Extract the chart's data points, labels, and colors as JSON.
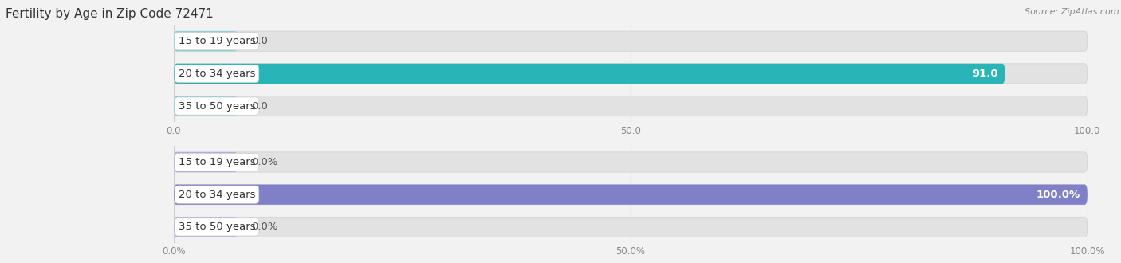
{
  "title": "Fertility by Age in Zip Code 72471",
  "source": "Source: ZipAtlas.com",
  "background_color": "#f2f2f2",
  "top_chart": {
    "categories": [
      "15 to 19 years",
      "20 to 34 years",
      "35 to 50 years"
    ],
    "values": [
      0.0,
      91.0,
      0.0
    ],
    "xlim": [
      0,
      100
    ],
    "xticks": [
      0.0,
      50.0,
      100.0
    ],
    "xtick_labels": [
      "0.0",
      "50.0",
      "100.0"
    ],
    "bar_color_full": "#29b5b8",
    "bar_color_small": "#85d4d6",
    "bar_bg_color": "#e2e2e2",
    "value_color_inside": "#ffffff",
    "value_color_outside": "#555555",
    "value_suffix": "",
    "zero_bar_width": 7.0
  },
  "bottom_chart": {
    "categories": [
      "15 to 19 years",
      "20 to 34 years",
      "35 to 50 years"
    ],
    "values": [
      0.0,
      100.0,
      0.0
    ],
    "xlim": [
      0,
      100
    ],
    "xticks": [
      0.0,
      50.0,
      100.0
    ],
    "xtick_labels": [
      "0.0%",
      "50.0%",
      "100.0%"
    ],
    "bar_color_full": "#8080c8",
    "bar_color_small": "#b0b0e0",
    "bar_bg_color": "#e2e2e2",
    "value_color_inside": "#ffffff",
    "value_color_outside": "#555555",
    "value_suffix": "%",
    "zero_bar_width": 7.0
  },
  "label_color": "#333333",
  "label_bg_color": "#ffffff",
  "label_fontsize": 9.5,
  "tick_fontsize": 8.5,
  "title_fontsize": 11,
  "source_fontsize": 8,
  "bar_height": 0.62,
  "bar_rounding": 0.31
}
